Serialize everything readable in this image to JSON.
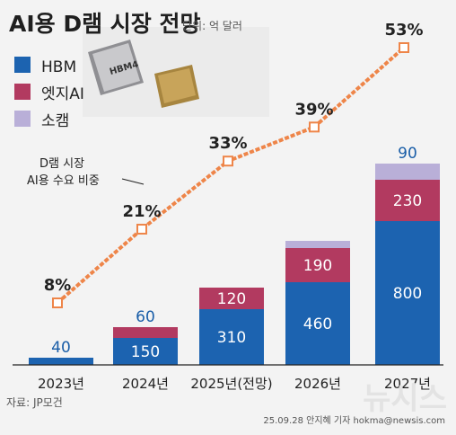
{
  "header": {
    "title": "AI용 D램 시장 전망",
    "unit": "단위: 억 달러"
  },
  "colors": {
    "hbm": "#1c63b0",
    "edge": "#b23a60",
    "sokam": "#b9afd8",
    "line": "#ee8549"
  },
  "product_image_label": "HBM4",
  "annotation_lines": [
    "D램 시장",
    "AI용 수요 비중"
  ],
  "footer": {
    "source": "자료: JP모건",
    "credit": "25.09.28 안지혜 기자 hokma@newsis.com",
    "watermark": "뉴시스"
  },
  "chart_data": {
    "type": "bar",
    "stacked": true,
    "categories": [
      "2023년",
      "2024년",
      "2025년(전망)",
      "2026년",
      "2027년"
    ],
    "series": [
      {
        "name": "HBM",
        "values": [
          40,
          150,
          310,
          460,
          800
        ]
      },
      {
        "name": "엣지AI",
        "values": [
          null,
          60,
          120,
          190,
          230
        ]
      },
      {
        "name": "소캠",
        "values": [
          null,
          null,
          null,
          40,
          90
        ]
      }
    ],
    "value_labels": [
      [
        "40",
        "150",
        "310",
        "460",
        "800"
      ],
      [
        "",
        "60",
        "120",
        "190",
        "230"
      ],
      [
        "",
        "",
        "",
        "",
        "90"
      ]
    ],
    "line": {
      "values": [
        8,
        21,
        33,
        39,
        53
      ],
      "labels": [
        "8%",
        "21%",
        "33%",
        "39%",
        "53%"
      ]
    },
    "ylim": [
      0,
      1120
    ],
    "legend_position": "top-left",
    "grid": false
  }
}
